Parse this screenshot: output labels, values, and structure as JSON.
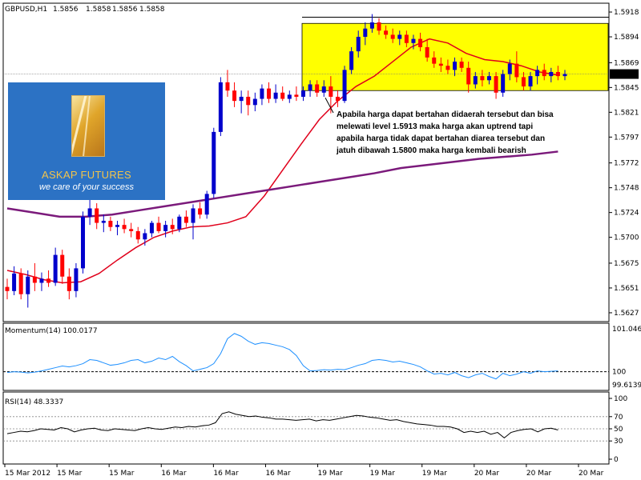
{
  "header": {
    "symbol": "GBPUSD,H1",
    "ohlc": [
      "1.5856",
      "1.5858",
      "1.5856",
      "1.5858"
    ]
  },
  "logo": {
    "name": "ASKAP FUTURES",
    "tagline": "we care of your success"
  },
  "annotation": {
    "lines": [
      "Apabila harga dapat bertahan didaerah tersebut dan bisa",
      "melewati level 1.5913 maka harga akan uptrend tapi",
      "apabila harga tidak dapat bertahan diarea tersebut dan",
      "jatuh dibawah 1.5800  maka harga kembali bearish"
    ]
  },
  "colors": {
    "bull": "#0000cc",
    "bear": "#ff0000",
    "highlight": "#ffff00",
    "ma_fast": "#e0001b",
    "ma_slow": "#7b1a7b",
    "momentum": "#1e90ff",
    "rsi": "#000000"
  },
  "chart_data": [
    {
      "type": "candlestick",
      "title": "GBPUSD,H1",
      "ylim": [
        1.562,
        1.5925
      ],
      "y_ticks": [
        "1.5918",
        "1.5894",
        "1.5869",
        "1.5845",
        "1.5821",
        "1.5797",
        "1.5772",
        "1.5748",
        "1.5724",
        "1.5700",
        "1.5675",
        "1.5651",
        "1.5627"
      ],
      "last_price_label": "1.5858",
      "x_ticks": [
        "15 Mar 2012",
        "15 Mar",
        "15 Mar",
        "16 Mar",
        "16 Mar",
        "16 Mar",
        "19 Mar",
        "19 Mar",
        "19 Mar",
        "20 Mar",
        "20 Mar",
        "20 Mar"
      ],
      "resistance_level": 1.5913,
      "highlight_zone": [
        1.5842,
        1.5907
      ],
      "annotation_arrow_to": 1.5835,
      "candles": [
        [
          1.5652,
          1.566,
          1.564,
          1.5648
        ],
        [
          1.5648,
          1.5672,
          1.5644,
          1.5665
        ],
        [
          1.5665,
          1.567,
          1.564,
          1.5645
        ],
        [
          1.5645,
          1.5668,
          1.5632,
          1.5662
        ],
        [
          1.5662,
          1.5675,
          1.5648,
          1.5656
        ],
        [
          1.5656,
          1.5666,
          1.5648,
          1.566
        ],
        [
          1.566,
          1.5668,
          1.5652,
          1.5656
        ],
        [
          1.5656,
          1.569,
          1.5653,
          1.5683
        ],
        [
          1.5683,
          1.5688,
          1.5655,
          1.5662
        ],
        [
          1.5662,
          1.567,
          1.564,
          1.5648
        ],
        [
          1.5648,
          1.5675,
          1.5642,
          1.567
        ],
        [
          1.567,
          1.5725,
          1.5665,
          1.572
        ],
        [
          1.572,
          1.5737,
          1.5712,
          1.5728
        ],
        [
          1.5728,
          1.5733,
          1.5708,
          1.5714
        ],
        [
          1.5714,
          1.5722,
          1.5705,
          1.5716
        ],
        [
          1.5716,
          1.572,
          1.5706,
          1.571
        ],
        [
          1.571,
          1.5716,
          1.5702,
          1.5712
        ],
        [
          1.5712,
          1.5718,
          1.5704,
          1.5708
        ],
        [
          1.5708,
          1.5714,
          1.57,
          1.5706
        ],
        [
          1.5706,
          1.571,
          1.5694,
          1.5698
        ],
        [
          1.5698,
          1.5708,
          1.5692,
          1.5704
        ],
        [
          1.5704,
          1.5716,
          1.57,
          1.5714
        ],
        [
          1.5714,
          1.572,
          1.5704,
          1.5706
        ],
        [
          1.5706,
          1.5716,
          1.57,
          1.5712
        ],
        [
          1.5712,
          1.5718,
          1.5703,
          1.5708
        ],
        [
          1.5708,
          1.5722,
          1.5705,
          1.572
        ],
        [
          1.572,
          1.5726,
          1.571,
          1.5714
        ],
        [
          1.5714,
          1.5732,
          1.5698,
          1.5728
        ],
        [
          1.5728,
          1.5734,
          1.5718,
          1.5722
        ],
        [
          1.5722,
          1.5745,
          1.5718,
          1.5742
        ],
        [
          1.5742,
          1.5806,
          1.5738,
          1.5802
        ],
        [
          1.5802,
          1.5855,
          1.5798,
          1.585
        ],
        [
          1.585,
          1.5862,
          1.5836,
          1.5842
        ],
        [
          1.5842,
          1.585,
          1.5826,
          1.5832
        ],
        [
          1.5832,
          1.5842,
          1.582,
          1.5836
        ],
        [
          1.5836,
          1.5842,
          1.5818,
          1.5828
        ],
        [
          1.5828,
          1.584,
          1.5822,
          1.5834
        ],
        [
          1.5834,
          1.5848,
          1.5828,
          1.5844
        ],
        [
          1.5844,
          1.585,
          1.583,
          1.5834
        ],
        [
          1.5834,
          1.5848,
          1.583,
          1.584
        ],
        [
          1.584,
          1.5846,
          1.5832,
          1.5834
        ],
        [
          1.5834,
          1.5842,
          1.583,
          1.5838
        ],
        [
          1.5838,
          1.5846,
          1.5832,
          1.5836
        ],
        [
          1.5836,
          1.5846,
          1.5832,
          1.5842
        ],
        [
          1.5842,
          1.5852,
          1.5836,
          1.5848
        ],
        [
          1.5848,
          1.5852,
          1.5836,
          1.584
        ],
        [
          1.584,
          1.5852,
          1.5836,
          1.5846
        ],
        [
          1.5846,
          1.5856,
          1.582,
          1.5836
        ],
        [
          1.5836,
          1.5842,
          1.5826,
          1.5832
        ],
        [
          1.5832,
          1.5866,
          1.583,
          1.5862
        ],
        [
          1.5862,
          1.5884,
          1.5858,
          1.588
        ],
        [
          1.588,
          1.59,
          1.5874,
          1.5894
        ],
        [
          1.5894,
          1.5908,
          1.5886,
          1.5902
        ],
        [
          1.5902,
          1.5916,
          1.5898,
          1.5908
        ],
        [
          1.5908,
          1.5912,
          1.5896,
          1.59
        ],
        [
          1.59,
          1.5905,
          1.5892,
          1.5896
        ],
        [
          1.5896,
          1.5902,
          1.5888,
          1.5892
        ],
        [
          1.5892,
          1.59,
          1.5886,
          1.5896
        ],
        [
          1.5896,
          1.59,
          1.5884,
          1.5888
        ],
        [
          1.5888,
          1.5896,
          1.5882,
          1.5892
        ],
        [
          1.5892,
          1.5898,
          1.588,
          1.5884
        ],
        [
          1.5884,
          1.5892,
          1.587,
          1.5874
        ],
        [
          1.5874,
          1.588,
          1.5864,
          1.5868
        ],
        [
          1.5868,
          1.5874,
          1.586,
          1.5866
        ],
        [
          1.5866,
          1.5872,
          1.5858,
          1.5862
        ],
        [
          1.5862,
          1.5874,
          1.5856,
          1.587
        ],
        [
          1.587,
          1.5874,
          1.586,
          1.5864
        ],
        [
          1.5864,
          1.587,
          1.584,
          1.5848
        ],
        [
          1.5848,
          1.586,
          1.5844,
          1.5856
        ],
        [
          1.5856,
          1.5862,
          1.5846,
          1.5852
        ],
        [
          1.5852,
          1.586,
          1.5848,
          1.5856
        ],
        [
          1.5856,
          1.586,
          1.5834,
          1.584
        ],
        [
          1.584,
          1.5862,
          1.5836,
          1.5858
        ],
        [
          1.5858,
          1.5872,
          1.5852,
          1.5868
        ],
        [
          1.5868,
          1.588,
          1.585,
          1.5855
        ],
        [
          1.5855,
          1.586,
          1.5842,
          1.5846
        ],
        [
          1.5846,
          1.586,
          1.5842,
          1.5856
        ],
        [
          1.5856,
          1.5866,
          1.5848,
          1.5862
        ],
        [
          1.5862,
          1.5868,
          1.5852,
          1.5856
        ],
        [
          1.5856,
          1.5864,
          1.585,
          1.586
        ],
        [
          1.586,
          1.5866,
          1.5852,
          1.5856
        ],
        [
          1.5856,
          1.5862,
          1.5852,
          1.5858
        ]
      ],
      "series": [
        {
          "name": "",
          "values": [
            1.5668,
            1.5664,
            1.5659,
            1.5656,
            1.5657,
            1.5665,
            1.5678,
            1.569,
            1.57,
            1.5706,
            1.571,
            1.5711,
            1.5714,
            1.572,
            1.574,
            1.5765,
            1.579,
            1.5814,
            1.5832,
            1.5846,
            1.5856,
            1.587,
            1.5884,
            1.5892,
            1.5888,
            1.5878,
            1.5872,
            1.587,
            1.5866,
            1.586,
            1.5857
          ],
          "x_start": 0,
          "x_end": 80
        },
        {
          "name": "",
          "values": [
            1.5728,
            1.5724,
            1.572,
            1.572,
            1.5722,
            1.5726,
            1.573,
            1.5734,
            1.5738,
            1.5742,
            1.5746,
            1.575,
            1.5754,
            1.5758,
            1.5762,
            1.5767,
            1.577,
            1.5773,
            1.5776,
            1.5778,
            1.578,
            1.5783
          ],
          "x_start": 0,
          "x_end": 80
        }
      ]
    },
    {
      "type": "line",
      "title": "Momentum(14) 100.0177",
      "ylim": [
        99.6139,
        101.0465
      ],
      "y_ticks": [
        "101.0465",
        "100",
        "99.6139"
      ],
      "reference_level": 100,
      "series": [
        {
          "name": "Momentum(14)",
          "values": [
            99.98,
            100.0,
            99.99,
            99.97,
            99.99,
            100.02,
            100.06,
            100.1,
            100.14,
            100.12,
            100.15,
            100.2,
            100.3,
            100.28,
            100.22,
            100.16,
            100.18,
            100.22,
            100.28,
            100.3,
            100.22,
            100.26,
            100.34,
            100.3,
            100.38,
            100.25,
            100.15,
            100.02,
            100.06,
            100.1,
            100.2,
            100.45,
            100.82,
            100.95,
            100.88,
            100.76,
            100.68,
            100.72,
            100.7,
            100.66,
            100.62,
            100.55,
            100.4,
            100.15,
            100.02,
            100.03,
            100.05,
            100.04,
            100.06,
            100.05,
            100.1,
            100.16,
            100.2,
            100.28,
            100.3,
            100.28,
            100.24,
            100.26,
            100.22,
            100.18,
            100.12,
            100.02,
            99.94,
            99.96,
            99.92,
            99.98,
            99.9,
            99.85,
            99.92,
            99.96,
            99.88,
            99.82,
            99.96,
            99.9,
            99.94,
            100.0,
            99.96,
            100.02,
            100.0,
            100.01,
            100.02
          ],
          "x_start": 0,
          "x_end": 80
        }
      ]
    },
    {
      "type": "line",
      "title": "RSI(14) 48.3337",
      "ylim": [
        0,
        100
      ],
      "y_ticks": [
        "100",
        "70",
        "50",
        "30",
        "0"
      ],
      "levels": [
        70,
        50,
        30
      ],
      "series": [
        {
          "name": "RSI(14)",
          "values": [
            42,
            44,
            46,
            45,
            47,
            50,
            49,
            48,
            52,
            50,
            45,
            48,
            50,
            51,
            48,
            47,
            50,
            49,
            48,
            47,
            50,
            52,
            50,
            49,
            51,
            53,
            52,
            54,
            53,
            55,
            56,
            60,
            75,
            78,
            74,
            72,
            70,
            71,
            69,
            68,
            66,
            66,
            65,
            64,
            65,
            66,
            63,
            65,
            64,
            66,
            68,
            70,
            72,
            71,
            69,
            68,
            66,
            64,
            65,
            62,
            60,
            58,
            57,
            56,
            54,
            54,
            53,
            50,
            44,
            46,
            44,
            46,
            41,
            44,
            35,
            44,
            47,
            49,
            50,
            45,
            50,
            51,
            48
          ],
          "x_start": 0,
          "x_end": 80
        }
      ]
    }
  ]
}
